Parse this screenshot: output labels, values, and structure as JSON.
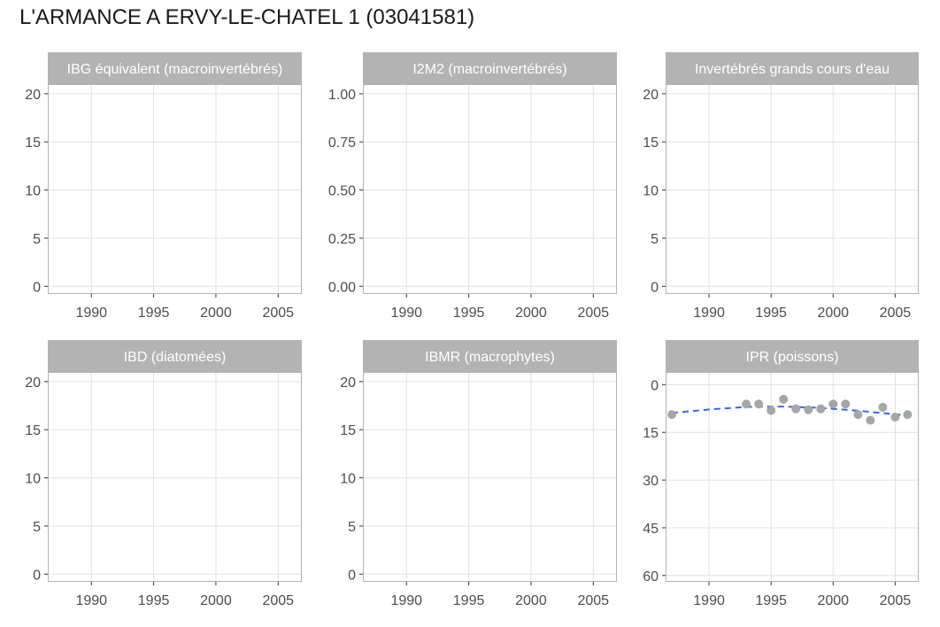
{
  "title": "L'ARMANCE A ERVY-LE-CHATEL 1 (03041581)",
  "colors": {
    "strip": "#b3b3b3",
    "panel_border": "#b3b3b3",
    "grid": "#e0e0e0",
    "point": "#a6a6a6",
    "trend": "#3366ff",
    "tick_text": "#4d4d4d"
  },
  "chart_data": [
    {
      "type": "scatter",
      "title": "IBG équivalent (macroinvertébrés)",
      "x_ticks": [
        1990,
        1995,
        2000,
        2005
      ],
      "xlim": [
        1986.5,
        2006.9
      ],
      "y_ticks": [
        0,
        5,
        10,
        15,
        20
      ],
      "y_tick_labels": [
        "0",
        "5",
        "10",
        "15",
        "20"
      ],
      "ylim": [
        -0.8,
        21
      ],
      "y_reversed": false,
      "points": [],
      "trend": []
    },
    {
      "type": "scatter",
      "title": "I2M2 (macroinvertébrés)",
      "x_ticks": [
        1990,
        1995,
        2000,
        2005
      ],
      "xlim": [
        1986.5,
        2006.9
      ],
      "y_ticks": [
        0,
        0.25,
        0.5,
        0.75,
        1.0
      ],
      "y_tick_labels": [
        "0.00",
        "0.25",
        "0.50",
        "0.75",
        "1.00"
      ],
      "ylim": [
        -0.04,
        1.05
      ],
      "y_reversed": false,
      "points": [],
      "trend": []
    },
    {
      "type": "scatter",
      "title": "Invertébrés grands cours d'eau",
      "x_ticks": [
        1990,
        1995,
        2000,
        2005
      ],
      "xlim": [
        1986.5,
        2006.9
      ],
      "y_ticks": [
        0,
        5,
        10,
        15,
        20
      ],
      "y_tick_labels": [
        "0",
        "5",
        "10",
        "15",
        "20"
      ],
      "ylim": [
        -0.8,
        21
      ],
      "y_reversed": false,
      "points": [],
      "trend": []
    },
    {
      "type": "scatter",
      "title": "IBD (diatomées)",
      "x_ticks": [
        1990,
        1995,
        2000,
        2005
      ],
      "xlim": [
        1986.5,
        2006.9
      ],
      "y_ticks": [
        0,
        5,
        10,
        15,
        20
      ],
      "y_tick_labels": [
        "0",
        "5",
        "10",
        "15",
        "20"
      ],
      "ylim": [
        -0.8,
        21
      ],
      "y_reversed": false,
      "points": [],
      "trend": []
    },
    {
      "type": "scatter",
      "title": "IBMR (macrophytes)",
      "x_ticks": [
        1990,
        1995,
        2000,
        2005
      ],
      "xlim": [
        1986.5,
        2006.9
      ],
      "y_ticks": [
        0,
        5,
        10,
        15,
        20
      ],
      "y_tick_labels": [
        "0",
        "5",
        "10",
        "15",
        "20"
      ],
      "ylim": [
        -0.8,
        21
      ],
      "y_reversed": false,
      "points": [],
      "trend": []
    },
    {
      "type": "scatter",
      "title": "IPR (poissons)",
      "x_ticks": [
        1990,
        1995,
        2000,
        2005
      ],
      "xlim": [
        1986.5,
        2006.9
      ],
      "y_ticks": [
        0,
        15,
        30,
        45,
        60
      ],
      "y_tick_labels": [
        "0",
        "15",
        "30",
        "45",
        "60"
      ],
      "ylim": [
        -4,
        62
      ],
      "y_reversed": true,
      "points": [
        {
          "x": 1987,
          "y": 9.4
        },
        {
          "x": 1993,
          "y": 6.1
        },
        {
          "x": 1994,
          "y": 6.1
        },
        {
          "x": 1995,
          "y": 8.1
        },
        {
          "x": 1996,
          "y": 4.6
        },
        {
          "x": 1997,
          "y": 7.6
        },
        {
          "x": 1998,
          "y": 7.9
        },
        {
          "x": 1999,
          "y": 7.6
        },
        {
          "x": 2000,
          "y": 6.1
        },
        {
          "x": 2001,
          "y": 6.1
        },
        {
          "x": 2002,
          "y": 9.4
        },
        {
          "x": 2003,
          "y": 11.2
        },
        {
          "x": 2004,
          "y": 7.1
        },
        {
          "x": 2005,
          "y": 10.2
        },
        {
          "x": 2006,
          "y": 9.4
        }
      ],
      "trend": [
        {
          "x": 1987,
          "y": 8.9
        },
        {
          "x": 1990,
          "y": 7.8
        },
        {
          "x": 1993,
          "y": 7.0
        },
        {
          "x": 1996,
          "y": 6.9
        },
        {
          "x": 1999,
          "y": 7.3
        },
        {
          "x": 2002,
          "y": 8.2
        },
        {
          "x": 2006,
          "y": 9.7
        }
      ]
    }
  ]
}
